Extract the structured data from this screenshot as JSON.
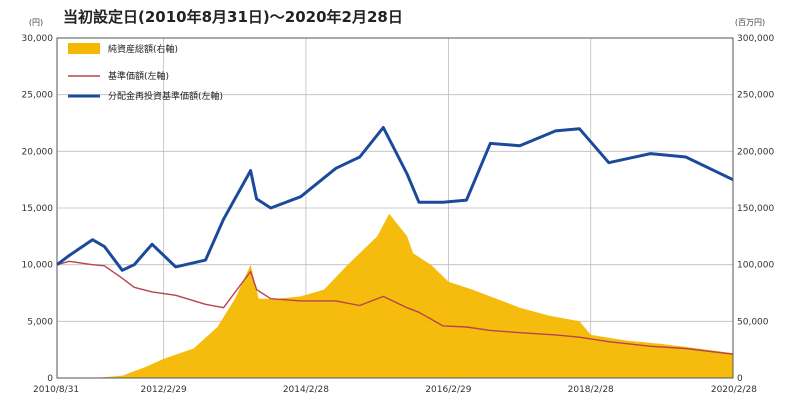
{
  "chart_data": {
    "type": "line",
    "title": "当初設定日(2010年8月31日)～2020年2月28日",
    "left_axis_unit": "(円)",
    "right_axis_unit": "(百万円)",
    "x_ticks": [
      "2010/8/31",
      "2012/2/29",
      "2014/2/28",
      "2016/2/29",
      "2018/2/28",
      "2020/2/28"
    ],
    "x_range": [
      "2010/8/31",
      "2020/2/28"
    ],
    "ylim_left": [
      0,
      30000
    ],
    "ylim_right": [
      0,
      300000
    ],
    "y_ticks_left": [
      "0",
      "5,000",
      "10,000",
      "15,000",
      "20,000",
      "25,000",
      "30,000"
    ],
    "y_ticks_right": [
      "0",
      "50,000",
      "100,000",
      "150,000",
      "200,000",
      "250,000",
      "300,000"
    ],
    "grid": true,
    "legend_position": "top-left",
    "series": [
      {
        "name": "純資産総額(右軸)",
        "kind": "area",
        "axis": "right",
        "color": "#f5b800",
        "x": [
          "2010/8/31",
          "2011/3/1",
          "2011/8/1",
          "2011/12/1",
          "2012/3/1",
          "2012/8/1",
          "2012/12/1",
          "2013/3/1",
          "2013/5/20",
          "2013/7/1",
          "2013/10/1",
          "2014/2/1",
          "2014/6/1",
          "2014/10/1",
          "2015/3/1",
          "2015/5/1",
          "2015/8/1",
          "2015/9/1",
          "2015/12/1",
          "2016/3/1",
          "2016/7/1",
          "2016/11/1",
          "2017/3/1",
          "2017/8/1",
          "2018/1/1",
          "2018/3/1",
          "2018/9/1",
          "2019/3/1",
          "2019/9/1",
          "2020/2/28"
        ],
        "values": [
          0,
          0,
          2000,
          10000,
          17000,
          26000,
          45000,
          70000,
          100000,
          70000,
          70000,
          72000,
          78000,
          100000,
          125000,
          145000,
          125000,
          110000,
          100000,
          85000,
          78000,
          70000,
          62000,
          55000,
          50000,
          38000,
          33000,
          30000,
          26000,
          22000
        ]
      },
      {
        "name": "基準価額(左軸)",
        "kind": "line",
        "axis": "left",
        "color": "#b8434f",
        "x": [
          "2010/8/31",
          "2010/11/1",
          "2011/3/1",
          "2011/5/1",
          "2011/8/1",
          "2011/10/1",
          "2012/1/1",
          "2012/5/1",
          "2012/10/1",
          "2013/1/1",
          "2013/5/20",
          "2013/6/20",
          "2013/9/1",
          "2014/2/1",
          "2014/8/1",
          "2014/12/1",
          "2015/4/1",
          "2015/8/1",
          "2015/10/1",
          "2016/2/1",
          "2016/6/1",
          "2016/10/1",
          "2017/3/1",
          "2017/9/1",
          "2018/1/1",
          "2018/6/1",
          "2019/1/1",
          "2019/7/1",
          "2020/2/28"
        ],
        "values": [
          10000,
          10300,
          10000,
          9900,
          8800,
          8000,
          7600,
          7300,
          6500,
          6200,
          9400,
          7800,
          7000,
          6800,
          6800,
          6400,
          7200,
          6200,
          5800,
          4600,
          4500,
          4200,
          4000,
          3800,
          3600,
          3200,
          2800,
          2600,
          2100
        ]
      },
      {
        "name": "分配金再投資基準価額(左軸)",
        "kind": "line",
        "axis": "left",
        "color": "#1c4a9a",
        "x": [
          "2010/8/31",
          "2010/11/1",
          "2011/3/1",
          "2011/5/1",
          "2011/8/1",
          "2011/10/1",
          "2012/1/1",
          "2012/5/1",
          "2012/10/1",
          "2013/1/1",
          "2013/5/20",
          "2013/6/20",
          "2013/9/1",
          "2014/2/1",
          "2014/8/1",
          "2014/12/1",
          "2015/4/1",
          "2015/8/1",
          "2015/10/1",
          "2016/2/1",
          "2016/6/1",
          "2016/10/1",
          "2017/3/1",
          "2017/9/1",
          "2018/1/1",
          "2018/6/1",
          "2019/1/1",
          "2019/7/1",
          "2020/2/28"
        ],
        "values": [
          10000,
          10800,
          12200,
          11600,
          9500,
          10000,
          11800,
          9800,
          10400,
          14000,
          18300,
          15800,
          15000,
          16000,
          18500,
          19500,
          22100,
          18000,
          15500,
          15500,
          15700,
          20700,
          20500,
          21800,
          22000,
          19000,
          19800,
          19500,
          17500
        ]
      }
    ]
  }
}
